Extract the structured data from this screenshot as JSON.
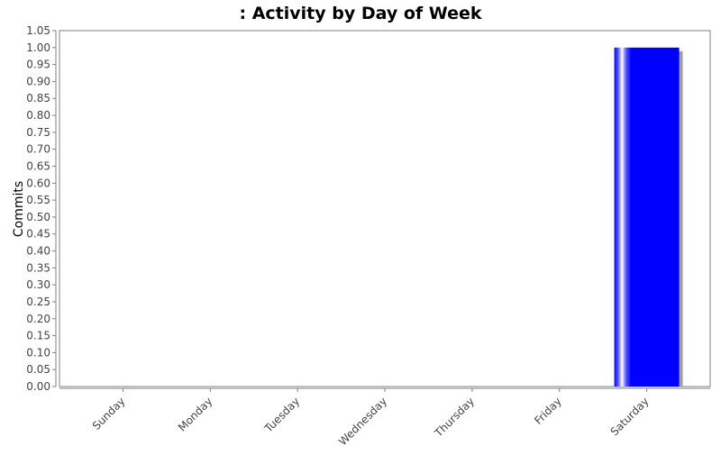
{
  "chart_data": {
    "type": "bar",
    "title": ": Activity by Day of Week",
    "xlabel": "",
    "ylabel": "Commits",
    "categories": [
      "Sunday",
      "Monday",
      "Tuesday",
      "Wednesday",
      "Thursday",
      "Friday",
      "Saturday"
    ],
    "values": [
      0,
      0,
      0,
      0,
      0,
      0,
      1
    ],
    "ylim": [
      0,
      1.05
    ],
    "ytick_step": 0.05,
    "grid": false,
    "legend": "none",
    "colors": {
      "bar": "#0000ff",
      "bar_highlight": "#ffffff",
      "bar_shadow": "#a0a0a0",
      "axis": "#808080",
      "plot_border": "#808080"
    }
  }
}
